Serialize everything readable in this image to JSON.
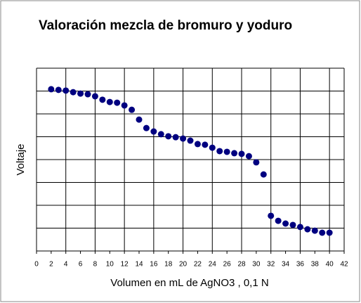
{
  "chart_data": {
    "type": "scatter",
    "title": "Valoración mezcla de bromuro y yoduro",
    "xlabel": "Volumen en mL de AgNO3 , 0,1 N",
    "ylabel": "Voltaje",
    "x": [
      2,
      3,
      4,
      5,
      6,
      7,
      8,
      9,
      10,
      11,
      12,
      13,
      14,
      15,
      16,
      17,
      18,
      19,
      20,
      21,
      22,
      23,
      24,
      25,
      26,
      27,
      28,
      29,
      30,
      31,
      32,
      33,
      34,
      35,
      36,
      37,
      38,
      39,
      40
    ],
    "values": [
      7.08,
      7.05,
      7.02,
      6.95,
      6.89,
      6.86,
      6.77,
      6.62,
      6.52,
      6.49,
      6.37,
      6.18,
      5.75,
      5.38,
      5.23,
      5.11,
      5.02,
      4.98,
      4.92,
      4.83,
      4.68,
      4.65,
      4.52,
      4.37,
      4.34,
      4.28,
      4.25,
      4.15,
      3.88,
      3.35,
      1.54,
      1.32,
      1.2,
      1.14,
      1.05,
      0.95,
      0.89,
      0.8,
      0.8
    ],
    "color": "#000080",
    "xlim": [
      0,
      42
    ],
    "xticks": [
      0,
      2,
      4,
      6,
      8,
      10,
      12,
      14,
      16,
      18,
      20,
      22,
      24,
      26,
      28,
      30,
      32,
      34,
      36,
      38,
      40,
      42
    ],
    "xgrid": [
      0,
      4,
      8,
      12,
      16,
      20,
      24,
      28,
      32,
      36,
      40,
      42
    ],
    "ylim": [
      0,
      8
    ],
    "yticks": [
      0,
      1,
      2,
      3,
      4,
      5,
      6,
      7,
      8
    ],
    "show_ytick_labels": false,
    "grid": true
  }
}
